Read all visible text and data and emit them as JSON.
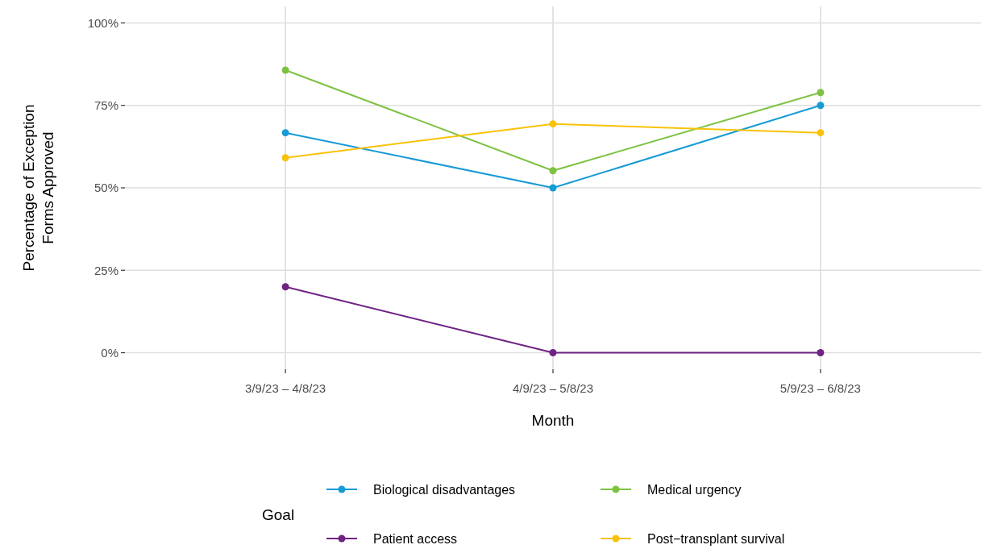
{
  "chart_data": {
    "type": "line",
    "xlabel": "Month",
    "ylabel": "Percentage of Exception Forms Approved",
    "legend_title": "Goal",
    "categories": [
      "3/9/23 – 4/8/23",
      "4/9/23 – 5/8/23",
      "5/9/23 – 6/8/23"
    ],
    "series": [
      {
        "name": "Biological disadvantages",
        "color": "#169bd5",
        "values": [
          66.7,
          50,
          75
        ]
      },
      {
        "name": "Medical urgency",
        "color": "#7dc242",
        "values": [
          85.7,
          55.2,
          78.9
        ]
      },
      {
        "name": "Patient access",
        "color": "#6f2383",
        "values": [
          20,
          0,
          0
        ]
      },
      {
        "name": "Post−transplant survival",
        "color": "#f9c20a",
        "values": [
          59.1,
          69.4,
          66.7
        ]
      }
    ],
    "ylim": [
      -5,
      105
    ],
    "yticks": [
      {
        "value": 0,
        "label": "0%"
      },
      {
        "value": 25,
        "label": "25%"
      },
      {
        "value": 50,
        "label": "50%"
      },
      {
        "value": 75,
        "label": "75%"
      },
      {
        "value": 100,
        "label": "100%"
      }
    ],
    "grid": true,
    "legend": "bottom",
    "marker": "circle",
    "line_style": "solid"
  }
}
